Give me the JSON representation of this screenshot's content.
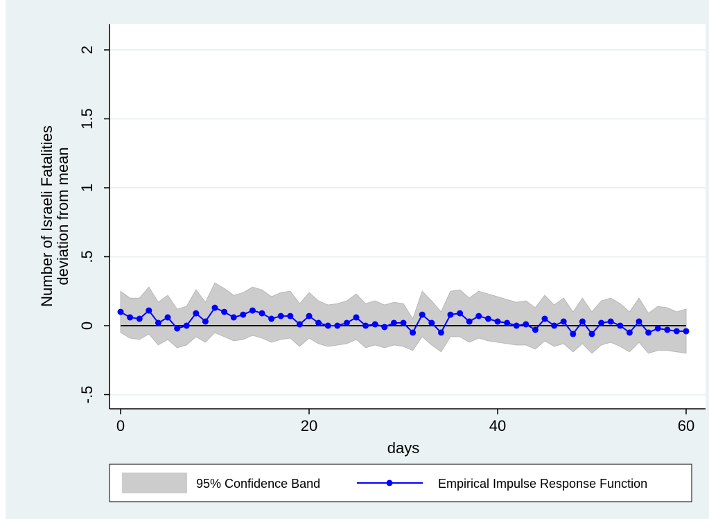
{
  "chart_data": {
    "type": "line",
    "title": "",
    "xlabel": "days",
    "ylabel_lines": [
      "Number of Israeli Fatalities",
      "deviation from mean"
    ],
    "xlim": [
      -1,
      62
    ],
    "ylim": [
      -0.55,
      2.2
    ],
    "x_ticks": [
      0,
      20,
      40,
      60
    ],
    "x_tick_labels": [
      "0",
      "20",
      "40",
      "60"
    ],
    "y_ticks": [
      -0.5,
      0,
      0.5,
      1,
      1.5,
      2
    ],
    "y_tick_labels": [
      "-.5",
      "0",
      ".5",
      "1",
      "1.5",
      "2"
    ],
    "grid": "horizontal",
    "reference_line_y": 0,
    "legend_position": "bottom",
    "colors": {
      "band": "#cccccc",
      "band_edge": "#b8b8b8",
      "line": "#0000ff",
      "plot_bg": "#ffffff",
      "outer_bg": "#eaf2f3",
      "grid": "#eaf2f3"
    },
    "series": [
      {
        "name": "95% Confidence Band",
        "kind": "band",
        "x": [
          0,
          1,
          2,
          3,
          4,
          5,
          6,
          7,
          8,
          9,
          10,
          11,
          12,
          13,
          14,
          15,
          16,
          17,
          18,
          19,
          20,
          21,
          22,
          23,
          24,
          25,
          26,
          27,
          28,
          29,
          30,
          31,
          32,
          33,
          34,
          35,
          36,
          37,
          38,
          39,
          40,
          41,
          42,
          43,
          44,
          45,
          46,
          47,
          48,
          49,
          50,
          51,
          52,
          53,
          54,
          55,
          56,
          57,
          58,
          59,
          60
        ],
        "upper": [
          0.25,
          0.2,
          0.2,
          0.28,
          0.17,
          0.22,
          0.12,
          0.14,
          0.26,
          0.17,
          0.31,
          0.27,
          0.22,
          0.24,
          0.28,
          0.26,
          0.21,
          0.24,
          0.25,
          0.16,
          0.24,
          0.18,
          0.15,
          0.16,
          0.18,
          0.23,
          0.16,
          0.18,
          0.15,
          0.17,
          0.16,
          0.05,
          0.25,
          0.18,
          0.1,
          0.25,
          0.26,
          0.2,
          0.25,
          0.23,
          0.21,
          0.19,
          0.17,
          0.18,
          0.13,
          0.22,
          0.15,
          0.2,
          0.1,
          0.2,
          0.1,
          0.18,
          0.2,
          0.16,
          0.1,
          0.2,
          0.09,
          0.14,
          0.13,
          0.1,
          0.12
        ],
        "lower": [
          -0.05,
          -0.09,
          -0.1,
          -0.06,
          -0.14,
          -0.1,
          -0.16,
          -0.14,
          -0.08,
          -0.12,
          -0.05,
          -0.08,
          -0.11,
          -0.1,
          -0.07,
          -0.09,
          -0.12,
          -0.1,
          -0.09,
          -0.15,
          -0.09,
          -0.13,
          -0.15,
          -0.14,
          -0.13,
          -0.1,
          -0.16,
          -0.14,
          -0.16,
          -0.14,
          -0.15,
          -0.18,
          -0.08,
          -0.14,
          -0.19,
          -0.08,
          -0.08,
          -0.12,
          -0.09,
          -0.11,
          -0.12,
          -0.13,
          -0.14,
          -0.14,
          -0.17,
          -0.11,
          -0.15,
          -0.13,
          -0.19,
          -0.13,
          -0.2,
          -0.14,
          -0.12,
          -0.15,
          -0.19,
          -0.12,
          -0.2,
          -0.18,
          -0.18,
          -0.19,
          -0.2
        ]
      },
      {
        "name": "Empirical Impulse Response Function",
        "kind": "line-markers",
        "x": [
          0,
          1,
          2,
          3,
          4,
          5,
          6,
          7,
          8,
          9,
          10,
          11,
          12,
          13,
          14,
          15,
          16,
          17,
          18,
          19,
          20,
          21,
          22,
          23,
          24,
          25,
          26,
          27,
          28,
          29,
          30,
          31,
          32,
          33,
          34,
          35,
          36,
          37,
          38,
          39,
          40,
          41,
          42,
          43,
          44,
          45,
          46,
          47,
          48,
          49,
          50,
          51,
          52,
          53,
          54,
          55,
          56,
          57,
          58,
          59,
          60
        ],
        "values": [
          0.1,
          0.06,
          0.05,
          0.11,
          0.02,
          0.06,
          -0.02,
          0.0,
          0.09,
          0.03,
          0.13,
          0.1,
          0.06,
          0.08,
          0.11,
          0.09,
          0.05,
          0.07,
          0.07,
          0.01,
          0.07,
          0.02,
          0.0,
          0.0,
          0.02,
          0.06,
          0.0,
          0.01,
          -0.01,
          0.02,
          0.02,
          -0.05,
          0.08,
          0.02,
          -0.05,
          0.08,
          0.09,
          0.03,
          0.07,
          0.05,
          0.03,
          0.02,
          0.0,
          0.01,
          -0.03,
          0.05,
          0.0,
          0.03,
          -0.06,
          0.03,
          -0.06,
          0.02,
          0.03,
          0.0,
          -0.05,
          0.03,
          -0.05,
          -0.02,
          -0.03,
          -0.04,
          -0.04
        ]
      }
    ]
  }
}
